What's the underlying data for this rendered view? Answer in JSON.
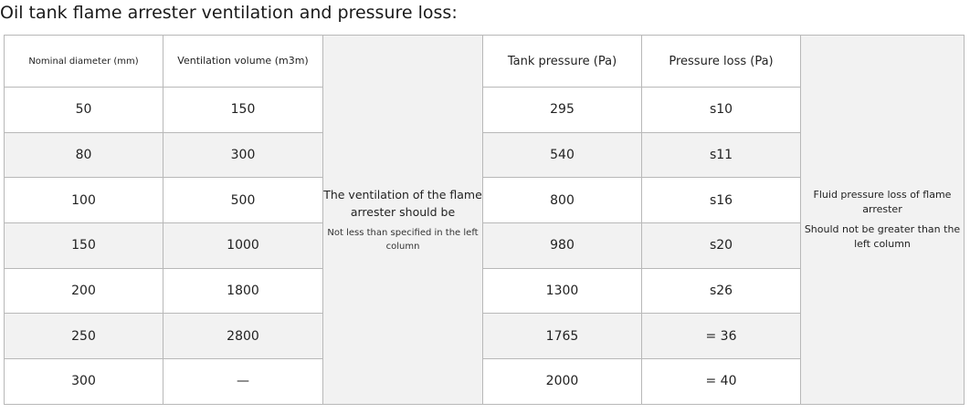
{
  "title": "Oil tank flame arrester ventilation and pressure loss:",
  "headers": {
    "diameter": "Nominal diameter (mm)",
    "ventilation": "Ventilation volume (m3m)",
    "tank_pressure": "Tank pressure (Pa)",
    "pressure_loss": "Pressure loss (Pa)"
  },
  "notes": {
    "ventilation_main": "The ventilation of the flame arrester should be",
    "ventilation_sub": "Not less than specified in the left column",
    "loss_main": "Fluid pressure loss of flame arrester",
    "loss_sub": "Should not be greater than the left column"
  },
  "rows": [
    {
      "diameter": "50",
      "ventilation": "150",
      "tank_pressure": "295",
      "pressure_loss": "s10"
    },
    {
      "diameter": "80",
      "ventilation": "300",
      "tank_pressure": "540",
      "pressure_loss": "s11"
    },
    {
      "diameter": "100",
      "ventilation": "500",
      "tank_pressure": "800",
      "pressure_loss": "s16"
    },
    {
      "diameter": "150",
      "ventilation": "1000",
      "tank_pressure": "980",
      "pressure_loss": "s20"
    },
    {
      "diameter": "200",
      "ventilation": "1800",
      "tank_pressure": "1300",
      "pressure_loss": "s26"
    },
    {
      "diameter": "250",
      "ventilation": "2800",
      "tank_pressure": "1765",
      "pressure_loss": "= 36"
    },
    {
      "diameter": "300",
      "ventilation": "—",
      "tank_pressure": "2000",
      "pressure_loss": "= 40"
    }
  ]
}
